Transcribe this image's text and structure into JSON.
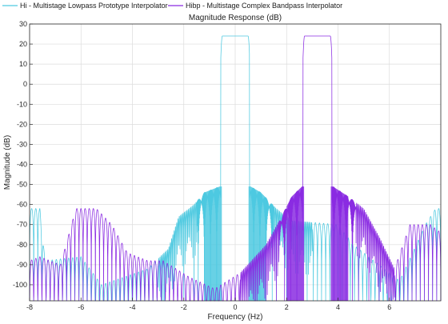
{
  "chart_data": {
    "type": "line",
    "title": "Magnitude Response (dB)",
    "xlabel": "Frequency (Hz)",
    "ylabel": "Magnitude (dB)",
    "xlim": [
      -8,
      8
    ],
    "ylim": [
      -108,
      30
    ],
    "xticks": [
      -8,
      -6,
      -4,
      -2,
      0,
      2,
      4,
      6
    ],
    "yticks": [
      30,
      20,
      10,
      0,
      -10,
      -20,
      -30,
      -40,
      -50,
      -60,
      -70,
      -80,
      -90,
      -100
    ],
    "grid": true,
    "legend_position": "top",
    "series": [
      {
        "name": "Hi - Multistage Lowpass Prototype Interpolator",
        "color": "#4dc9e0",
        "passband": [
          -0.5,
          0.5
        ],
        "passband_gain_db": 24,
        "sidelobe_envelope": [
          [
            -8,
            -62
          ],
          [
            -7.6,
            -62
          ],
          [
            -7.4,
            -88
          ],
          [
            -6.0,
            -86
          ],
          [
            -5.2,
            -100
          ],
          [
            -3.4,
            -92
          ],
          [
            -2.6,
            -82
          ],
          [
            -2.2,
            -66
          ],
          [
            -1.6,
            -60
          ],
          [
            -1.2,
            -54
          ],
          [
            -0.6,
            -51
          ],
          [
            0.6,
            -51
          ],
          [
            1.0,
            -54
          ],
          [
            1.6,
            -62
          ],
          [
            2.2,
            -68
          ],
          [
            4.0,
            -70
          ],
          [
            4.6,
            -80
          ],
          [
            5.6,
            -90
          ],
          [
            6.4,
            -98
          ],
          [
            7.4,
            -70
          ],
          [
            7.8,
            -62
          ],
          [
            8,
            -62
          ]
        ]
      },
      {
        "name": "Hibp - Multistage Complex Bandpass Interpolator",
        "color": "#8a2be2",
        "passband": [
          2.7,
          3.7
        ],
        "passband_gain_db": 24,
        "sidelobe_envelope": [
          [
            -8,
            -88
          ],
          [
            -7.6,
            -86
          ],
          [
            -6.8,
            -90
          ],
          [
            -6.2,
            -62
          ],
          [
            -5.4,
            -62
          ],
          [
            -4.8,
            -70
          ],
          [
            -4.2,
            -84
          ],
          [
            -3.4,
            -88
          ],
          [
            -2.8,
            -88
          ],
          [
            -1.8,
            -96
          ],
          [
            -0.8,
            -102
          ],
          [
            0.2,
            -94
          ],
          [
            1.2,
            -80
          ],
          [
            1.8,
            -66
          ],
          [
            2.2,
            -56
          ],
          [
            2.6,
            -51
          ],
          [
            3.8,
            -51
          ],
          [
            4.4,
            -56
          ],
          [
            5.0,
            -62
          ],
          [
            5.6,
            -76
          ],
          [
            6.2,
            -92
          ],
          [
            6.8,
            -70
          ],
          [
            7.6,
            -70
          ],
          [
            8,
            -74
          ]
        ]
      }
    ]
  }
}
